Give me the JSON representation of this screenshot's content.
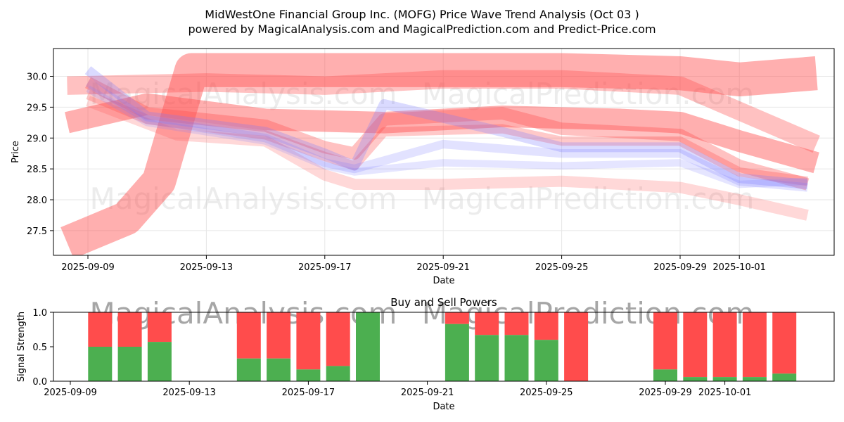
{
  "title_line1": "MidWestOne Financial Group Inc. (MOFG) Price Wave Trend Analysis (Oct 03 )",
  "title_line2": "powered by MagicalAnalysis.com and MagicalPrediction.com and Predict-Price.com",
  "watermarks": [
    "MagicalAnalysis.com",
    "MagicalPrediction.com"
  ],
  "colors": {
    "red_band": "#ff4d4d",
    "blue_band": "#7b7bff",
    "buy": "#4caf50",
    "sell": "#ff4c4c",
    "grid": "#e6e6e6"
  },
  "chart_data": [
    {
      "type": "area",
      "name": "price-wave",
      "xlabel": "Date",
      "ylabel": "Price",
      "ylim": [
        27.1,
        30.45
      ],
      "x_tick_labels": [
        "2025-09-09",
        "2025-09-13",
        "2025-09-17",
        "2025-09-21",
        "2025-09-25",
        "2025-09-29",
        "2025-10-01"
      ],
      "x_tick_days": [
        0,
        4,
        8,
        12,
        16,
        20,
        22
      ],
      "y_ticks": [
        27.5,
        28.0,
        28.5,
        29.0,
        29.5,
        30.0
      ],
      "y_tick_labels": [
        "27.5",
        "28.0",
        "28.5",
        "29.0",
        "29.5",
        "30.0"
      ],
      "grid": true,
      "bands": [
        {
          "color": "red",
          "width": 0.55,
          "opacity": 0.45,
          "days": [
            -0.7,
            1.3,
            2.4,
            3.5,
            10,
            12,
            16,
            20,
            22,
            24.6
          ],
          "values": [
            27.3,
            27.7,
            28.3,
            30.1,
            30.1,
            30.1,
            30.1,
            30.05,
            29.95,
            30.05
          ]
        },
        {
          "color": "red",
          "width": 0.35,
          "opacity": 0.45,
          "days": [
            -0.7,
            2,
            6,
            10,
            14,
            18,
            20,
            22,
            24.6
          ],
          "values": [
            29.25,
            29.55,
            29.3,
            29.25,
            29.35,
            29.3,
            29.25,
            28.95,
            28.6
          ]
        },
        {
          "color": "red",
          "width": 0.3,
          "opacity": 0.35,
          "days": [
            -0.7,
            4,
            8,
            12,
            16,
            20,
            24.6
          ],
          "values": [
            29.85,
            29.9,
            29.85,
            29.95,
            29.95,
            29.85,
            28.9
          ]
        },
        {
          "color": "red",
          "width": 0.2,
          "opacity": 0.35,
          "days": [
            0,
            2,
            6,
            8,
            9,
            10,
            14,
            16,
            20,
            22,
            24.3
          ],
          "values": [
            29.9,
            29.4,
            29.2,
            28.85,
            28.75,
            29.3,
            29.4,
            29.15,
            29.05,
            28.55,
            28.25
          ]
        },
        {
          "color": "red",
          "width": 0.15,
          "opacity": 0.3,
          "days": [
            0,
            2,
            6,
            8,
            9,
            10,
            14,
            16,
            20,
            22,
            24.3
          ],
          "values": [
            29.7,
            29.3,
            29.05,
            28.7,
            28.55,
            29.1,
            29.15,
            28.95,
            28.95,
            28.45,
            28.3
          ]
        },
        {
          "color": "red",
          "width": 0.18,
          "opacity": 0.22,
          "days": [
            0,
            3,
            6,
            8,
            9,
            12,
            16,
            20,
            22,
            24.3
          ],
          "values": [
            29.6,
            29.05,
            28.95,
            28.4,
            28.25,
            28.25,
            28.3,
            28.2,
            28.0,
            27.75
          ]
        },
        {
          "color": "blue",
          "width": 0.16,
          "opacity": 0.28,
          "days": [
            0,
            2,
            6,
            8,
            9,
            10,
            14,
            16,
            20,
            22,
            24.3
          ],
          "values": [
            30.1,
            29.35,
            29.1,
            28.75,
            28.55,
            29.55,
            29.1,
            28.85,
            28.85,
            28.35,
            28.25
          ]
        },
        {
          "color": "blue",
          "width": 0.14,
          "opacity": 0.22,
          "days": [
            0,
            2,
            6,
            8,
            9,
            12,
            16,
            20,
            22,
            24.3
          ],
          "values": [
            29.9,
            29.3,
            29.0,
            28.6,
            28.5,
            28.9,
            28.75,
            28.75,
            28.3,
            28.2
          ]
        },
        {
          "color": "blue",
          "width": 0.12,
          "opacity": 0.2,
          "days": [
            0,
            2,
            6,
            8,
            9,
            12,
            16,
            20,
            22,
            24.3
          ],
          "values": [
            29.8,
            29.25,
            28.95,
            28.55,
            28.45,
            28.6,
            28.55,
            28.6,
            28.25,
            28.3
          ]
        }
      ]
    },
    {
      "type": "bar",
      "name": "buy-sell-powers",
      "title": "Buy and Sell Powers",
      "xlabel": "Date",
      "ylabel": "Signal Strength",
      "ylim": [
        0,
        1.0
      ],
      "y_ticks": [
        0,
        0.5,
        1.0
      ],
      "y_tick_labels": [
        "0.0",
        "0.5",
        "1.0"
      ],
      "x_tick_labels": [
        "2025-09-09",
        "2025-09-13",
        "2025-09-17",
        "2025-09-21",
        "2025-09-25",
        "2025-09-29",
        "2025-10-01"
      ],
      "x_tick_days": [
        0,
        4,
        8,
        12,
        16,
        20,
        22
      ],
      "series": [
        {
          "name": "Buy",
          "color": "green"
        },
        {
          "name": "Sell",
          "color": "red"
        }
      ],
      "days": [
        1,
        2,
        3,
        6,
        7,
        8,
        9,
        10,
        13,
        14,
        15,
        16,
        17,
        20,
        21,
        22,
        23,
        24
      ],
      "buy_values": [
        0.5,
        0.5,
        0.57,
        0.33,
        0.33,
        0.17,
        0.22,
        1.0,
        0.83,
        0.67,
        0.67,
        0.6,
        0.0,
        0.17,
        0.06,
        0.06,
        0.06,
        0.11
      ]
    }
  ]
}
